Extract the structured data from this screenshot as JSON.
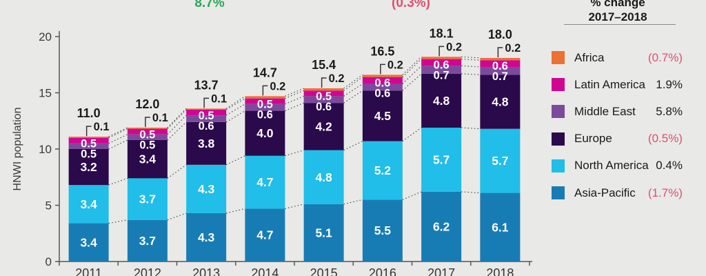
{
  "annotations": {
    "left": {
      "text": "8.7%",
      "color": "#27a65a"
    },
    "right": {
      "text": "(0.3%)",
      "color": "#dd4f6e"
    }
  },
  "legend": {
    "title_line1": "% change",
    "title_line2": "2017–2018",
    "items": [
      {
        "label": "Africa",
        "value": "(0.7%)",
        "color": "#ed7131",
        "negative": true
      },
      {
        "label": "Latin America",
        "value": "1.9%",
        "color": "#d00693",
        "negative": false
      },
      {
        "label": "Middle East",
        "value": "5.8%",
        "color": "#7c4a9c",
        "negative": false
      },
      {
        "label": "Europe",
        "value": "(0.5%)",
        "color": "#2a0a4a",
        "negative": true
      },
      {
        "label": "North America",
        "value": "0.4%",
        "color": "#20bee8",
        "negative": false
      },
      {
        "label": "Asia-Pacific",
        "value": "(1.7%)",
        "color": "#187cb4",
        "negative": true
      }
    ]
  },
  "chart_data": {
    "type": "bar",
    "stacked": true,
    "title": "",
    "xlabel": "",
    "ylabel": "HNWI population",
    "ylim": [
      0,
      20
    ],
    "yticks": [
      0,
      5,
      10,
      15,
      20
    ],
    "grid": false,
    "legend_position": "right",
    "categories": [
      "2011",
      "2012",
      "2013",
      "2014",
      "2015",
      "2016",
      "2017",
      "2018"
    ],
    "series": [
      {
        "name": "Asia-Pacific",
        "color": "#187cb4",
        "values": [
          3.4,
          3.7,
          4.3,
          4.7,
          5.1,
          5.5,
          6.2,
          6.1
        ]
      },
      {
        "name": "North America",
        "color": "#20bee8",
        "values": [
          3.4,
          3.7,
          4.3,
          4.7,
          4.8,
          5.2,
          5.7,
          5.7
        ]
      },
      {
        "name": "Europe",
        "color": "#2a0a4a",
        "values": [
          3.2,
          3.4,
          3.8,
          4.0,
          4.2,
          4.5,
          4.8,
          4.8
        ]
      },
      {
        "name": "Middle East",
        "color": "#7c4a9c",
        "values": [
          0.5,
          0.5,
          0.6,
          0.6,
          0.6,
          0.6,
          0.7,
          0.7
        ]
      },
      {
        "name": "Latin America",
        "color": "#d00693",
        "values": [
          0.5,
          0.5,
          0.5,
          0.5,
          0.5,
          0.6,
          0.6,
          0.6
        ]
      },
      {
        "name": "Africa",
        "color": "#ed7131",
        "values": [
          0.1,
          0.1,
          0.1,
          0.2,
          0.2,
          0.2,
          0.2,
          0.2
        ]
      }
    ],
    "totals": [
      "11.0",
      "12.0",
      "13.7",
      "14.7",
      "15.4",
      "16.5",
      "18.1",
      "18.0"
    ],
    "callout_series": "Africa"
  }
}
